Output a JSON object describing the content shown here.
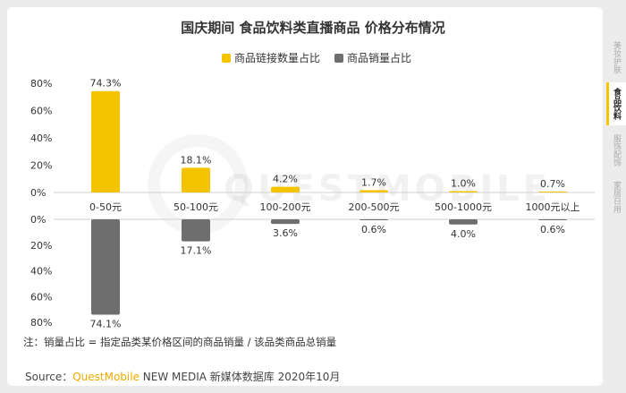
{
  "title": "国庆期间 食品饮料类直播商品 价格分布情况",
  "legend": [
    {
      "label": "商品链接数量占比",
      "color": "#f5c400"
    },
    {
      "label": "商品销量占比",
      "color": "#6e6e6e"
    }
  ],
  "note": "注：销量占比 = 指定品类某价格区间的商品销量 / 该品类商品总销量",
  "source": {
    "prefix": "Source：",
    "brand": "QuestMobile",
    "rest": " NEW MEDIA 新媒体数据库 2020年10月"
  },
  "watermark": "QUESTMOBILE",
  "side_tabs": [
    {
      "label": "美妆护肤",
      "active": false
    },
    {
      "label": "食品饮料",
      "active": true
    },
    {
      "label": "服饰配饰",
      "active": false
    },
    {
      "label": "家居日用",
      "active": false
    }
  ],
  "chart_data": {
    "type": "bar",
    "categories": [
      "0-50元",
      "50-100元",
      "100-200元",
      "200-500元",
      "500-1000元",
      "1000元以上"
    ],
    "series": [
      {
        "name": "商品链接数量占比",
        "values": [
          74.3,
          18.1,
          4.2,
          1.7,
          1.0,
          0.7
        ],
        "labels": [
          "74.3%",
          "18.1%",
          "4.2%",
          "1.7%",
          "1.0%",
          "0.7%"
        ],
        "color": "#f5c400"
      },
      {
        "name": "商品销量占比",
        "values": [
          74.1,
          17.1,
          3.6,
          0.6,
          4.0,
          0.6
        ],
        "labels": [
          "74.1%",
          "17.1%",
          "3.6%",
          "0.6%",
          "4.0%",
          "0.6%"
        ],
        "color": "#6e6e6e"
      }
    ],
    "upper_ticks": [
      "80%",
      "60%",
      "40%",
      "20%",
      "0%"
    ],
    "lower_ticks": [
      "0%",
      "20%",
      "40%",
      "60%",
      "80%"
    ],
    "ylim": [
      0,
      80
    ]
  }
}
